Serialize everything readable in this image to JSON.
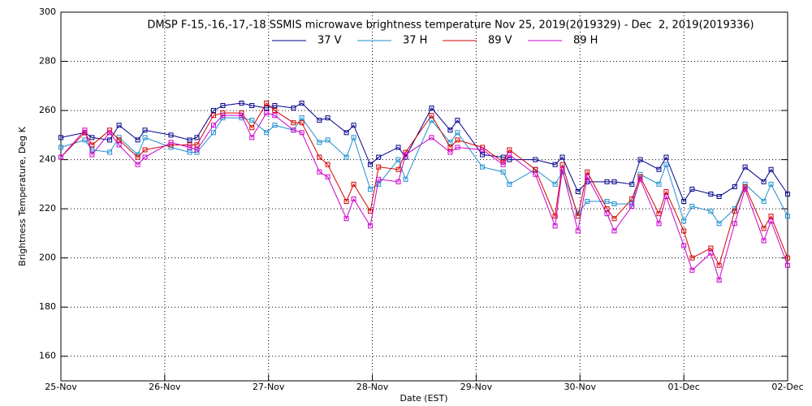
{
  "chart_data": {
    "type": "line",
    "title": "DMSP F-15,-16,-17,-18 SSMIS microwave brightness temperature Nov 25, 2019(2019329) - Dec  2, 2019(2019336)",
    "xlabel": "Date (EST)",
    "ylabel": "Brightness Temperature, Deg K",
    "x": [
      0,
      0.23,
      0.3,
      0.47,
      0.56,
      0.74,
      0.81,
      1.06,
      1.24,
      1.31,
      1.47,
      1.56,
      1.74,
      1.84,
      1.98,
      2.06,
      2.24,
      2.32,
      2.49,
      2.57,
      2.75,
      2.82,
      2.98,
      3.06,
      3.25,
      3.32,
      3.57,
      3.75,
      3.82,
      4.06,
      4.26,
      4.32,
      4.57,
      4.76,
      4.83,
      4.98,
      5.07,
      5.26,
      5.33,
      5.5,
      5.58,
      5.76,
      5.83,
      6.0,
      6.08,
      6.26,
      6.34,
      6.49,
      6.59,
      6.77,
      6.84,
      7.0
    ],
    "series": [
      {
        "name": "37 V",
        "color": "#00008b",
        "values": [
          249,
          251,
          249,
          248,
          254,
          248,
          252,
          250,
          248,
          249,
          260,
          262,
          263,
          262,
          261,
          262,
          261,
          263,
          256,
          257,
          251,
          254,
          238,
          241,
          245,
          241,
          261,
          252,
          256,
          242,
          241,
          240,
          240,
          238,
          241,
          227,
          231,
          231,
          231,
          230,
          240,
          236,
          241,
          223,
          228,
          226,
          225,
          229,
          237,
          231,
          236,
          226
        ]
      },
      {
        "name": "37 H",
        "color": "#1e8fcf",
        "values": [
          245,
          248,
          244,
          243,
          249,
          242,
          249,
          245,
          243,
          243,
          251,
          257,
          257,
          256,
          251,
          254,
          252,
          257,
          247,
          248,
          241,
          249,
          228,
          230,
          240,
          232,
          256,
          247,
          251,
          237,
          235,
          230,
          236,
          230,
          235,
          218,
          223,
          223,
          222,
          222,
          234,
          230,
          238,
          215,
          221,
          219,
          214,
          220,
          230,
          223,
          230,
          217
        ]
      },
      {
        "name": "89 V",
        "color": "#d40000",
        "values": [
          241,
          251,
          246,
          252,
          248,
          241,
          244,
          246,
          246,
          246,
          258,
          259,
          259,
          253,
          263,
          260,
          255,
          255,
          241,
          238,
          223,
          230,
          219,
          237,
          236,
          243,
          258,
          245,
          248,
          245,
          239,
          244,
          236,
          217,
          238,
          217,
          235,
          220,
          216,
          224,
          233,
          218,
          227,
          211,
          200,
          204,
          197,
          219,
          229,
          212,
          217,
          200
        ]
      },
      {
        "name": "89 H",
        "color": "#cc00cc",
        "values": [
          241,
          252,
          242,
          251,
          246,
          238,
          241,
          247,
          245,
          244,
          254,
          258,
          258,
          249,
          259,
          258,
          252,
          251,
          235,
          233,
          216,
          224,
          213,
          232,
          231,
          242,
          249,
          243,
          245,
          244,
          238,
          242,
          234,
          213,
          236,
          211,
          233,
          218,
          211,
          221,
          232,
          214,
          225,
          205,
          195,
          202,
          191,
          214,
          228,
          207,
          215,
          197
        ]
      }
    ],
    "xlim": [
      0,
      7
    ],
    "xticks": [
      {
        "value": 0,
        "label": "25-Nov"
      },
      {
        "value": 1,
        "label": "26-Nov"
      },
      {
        "value": 2,
        "label": "27-Nov"
      },
      {
        "value": 3,
        "label": "28-Nov"
      },
      {
        "value": 4,
        "label": "29-Nov"
      },
      {
        "value": 5,
        "label": "30-Nov"
      },
      {
        "value": 6,
        "label": "01-Dec"
      },
      {
        "value": 7,
        "label": "02-Dec"
      }
    ],
    "ylim": [
      150,
      300
    ],
    "yticks": [
      160,
      180,
      200,
      220,
      240,
      260,
      280,
      300
    ],
    "grid": true
  }
}
